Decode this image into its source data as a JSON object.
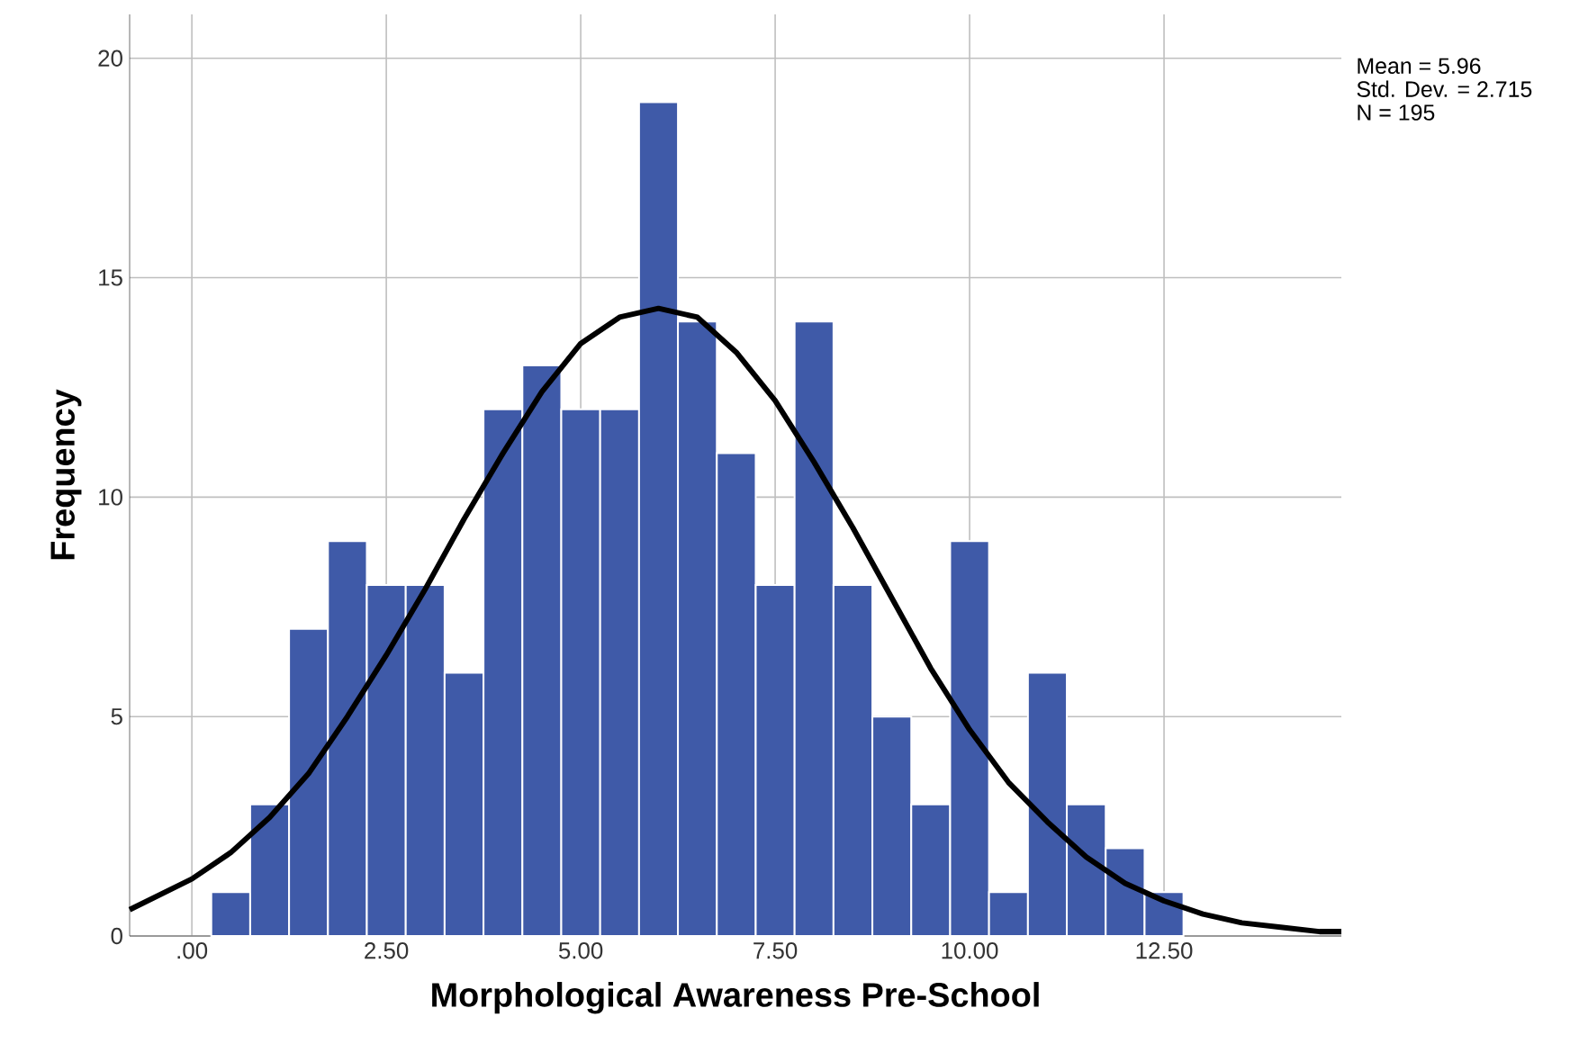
{
  "chart_data": {
    "type": "histogram",
    "xlabel": "Morphological Awareness Pre-School",
    "ylabel": "Frequency",
    "bins": [
      0.25,
      0.75,
      1.25,
      1.75,
      2.25,
      2.75,
      3.25,
      3.75,
      4.25,
      4.75,
      5.25,
      5.75,
      6.25,
      6.75,
      7.25,
      7.75,
      8.25,
      8.75,
      9.25,
      9.75,
      10.25,
      10.75,
      11.25,
      11.75,
      12.25,
      12.75
    ],
    "values": [
      1,
      3,
      7,
      9,
      8,
      8,
      6,
      12,
      13,
      12,
      12,
      19,
      14,
      11,
      8,
      14,
      8,
      5,
      3,
      9,
      1,
      6,
      3,
      2,
      1
    ],
    "color": "#3f5aa8",
    "series": [
      {
        "type": "line",
        "color": "#000000",
        "x": [
          -0.8,
          0,
          0.5,
          1,
          1.5,
          2,
          2.5,
          3,
          3.5,
          4,
          4.5,
          5,
          5.5,
          6,
          6.5,
          7,
          7.5,
          8,
          8.5,
          9,
          9.5,
          10,
          10.5,
          11,
          11.5,
          12,
          12.5,
          13,
          13.5,
          14,
          14.5,
          14.78
        ],
        "values": [
          0.6,
          1.3,
          1.9,
          2.7,
          3.7,
          5.0,
          6.4,
          7.9,
          9.5,
          11.0,
          12.4,
          13.5,
          14.1,
          14.3,
          14.1,
          13.3,
          12.2,
          10.8,
          9.3,
          7.7,
          6.1,
          4.7,
          3.5,
          2.6,
          1.8,
          1.2,
          0.8,
          0.5,
          0.3,
          0.2,
          0.1,
          0.1
        ]
      }
    ],
    "xlim": [
      -0.8,
      14.78
    ],
    "ylim": [
      0,
      21
    ],
    "xticks": [
      {
        "value": 0,
        "label": ".00"
      },
      {
        "value": 2.5,
        "label": "2.50"
      },
      {
        "value": 5,
        "label": "5.00"
      },
      {
        "value": 7.5,
        "label": "7.50"
      },
      {
        "value": 10,
        "label": "10.00"
      },
      {
        "value": 12.5,
        "label": "12.50"
      }
    ],
    "yticks": [
      0,
      5,
      10,
      15,
      20
    ],
    "grid": true,
    "annotations": [
      "Mean = 5.96",
      "Std. Dev. = 2.715",
      "N = 195"
    ]
  }
}
